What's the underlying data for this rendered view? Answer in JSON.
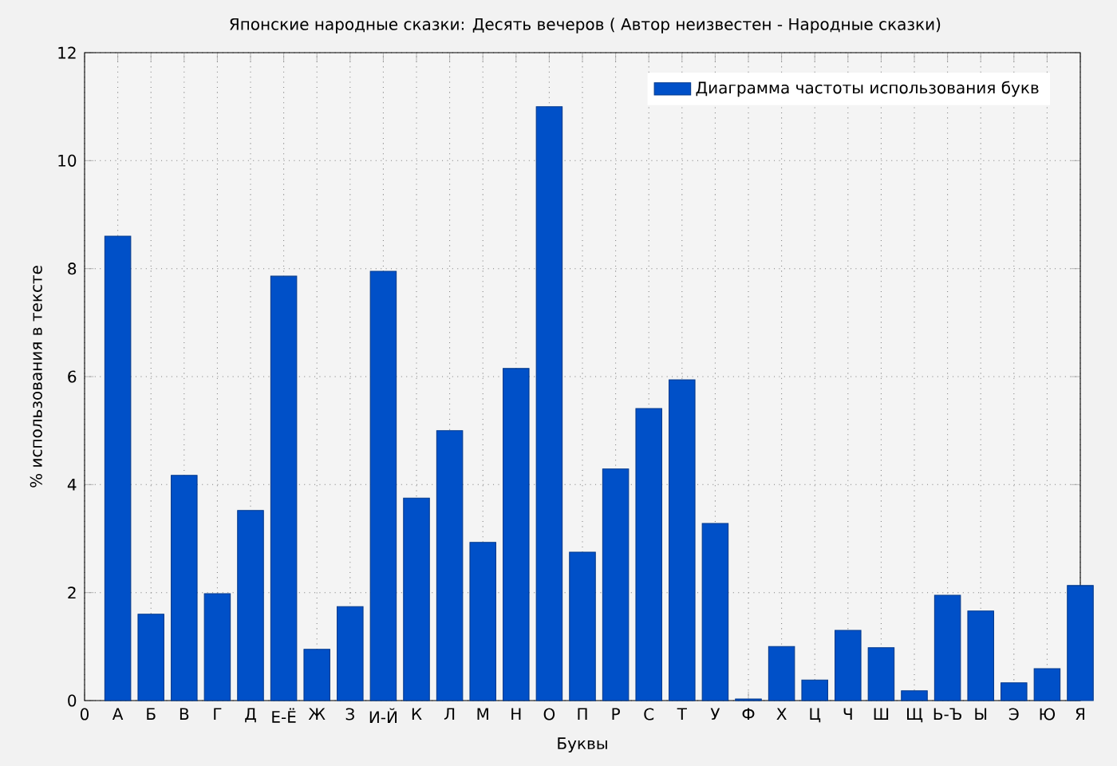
{
  "chart_data": {
    "type": "bar",
    "title": "Японские народные сказки: Десять вечеров ( Автор неизвестен - Народные сказки)",
    "xlabel": "Буквы",
    "ylabel": "% использования в тексте",
    "categories": [
      "0",
      "А",
      "Б",
      "В",
      "Г",
      "Д",
      "Е-Ё",
      "Ж",
      "З",
      "И-Й",
      "К",
      "Л",
      "М",
      "Н",
      "О",
      "П",
      "Р",
      "С",
      "Т",
      "У",
      "Ф",
      "Х",
      "Ц",
      "Ч",
      "Ш",
      "Щ",
      "Ь-Ъ",
      "Ы",
      "Э",
      "Ю",
      "Я"
    ],
    "series": [
      {
        "name": "Диаграмма частоты использования букв",
        "color": "#0050c8",
        "values": [
          null,
          8.6,
          1.6,
          4.17,
          1.98,
          3.52,
          7.86,
          0.95,
          1.74,
          7.95,
          3.75,
          5.0,
          2.93,
          6.15,
          11.0,
          2.75,
          4.29,
          5.41,
          5.94,
          3.28,
          0.03,
          1.0,
          0.38,
          1.3,
          0.98,
          0.18,
          1.95,
          1.66,
          0.33,
          0.59,
          2.13
        ]
      }
    ],
    "ylim": [
      0,
      12
    ],
    "yticks": [
      0,
      2,
      4,
      6,
      8,
      10,
      12
    ],
    "grid": true,
    "legend": "top right"
  }
}
